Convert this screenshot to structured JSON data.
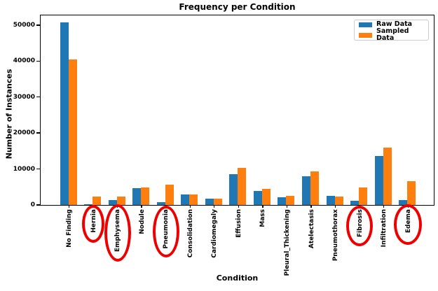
{
  "title": "Frequency per Condition",
  "xlabel": "Condition",
  "ylabel": "Number of Instances",
  "legend": {
    "position": "upper right",
    "items": [
      {
        "label": "Raw Data",
        "color": "#1f77b4"
      },
      {
        "label": "Sampled Data",
        "color": "#ff7f0e"
      }
    ]
  },
  "chart_data": {
    "type": "bar",
    "title": "Frequency per Condition",
    "xlabel": "Condition",
    "ylabel": "Number of Instances",
    "categories": [
      "No Finding",
      "Hernia",
      "Emphysema",
      "Nodule",
      "Pneumonia",
      "Consolidation",
      "Cardiomegaly",
      "Effusion",
      "Mass",
      "Pleural_Thickening",
      "Atelectasis",
      "Pneumothorax",
      "Fibrosis",
      "Infiltration",
      "Edema"
    ],
    "series": [
      {
        "name": "Raw Data",
        "color": "#1f77b4",
        "values": [
          50700,
          230,
          1300,
          4700,
          700,
          2900,
          1800,
          8500,
          3900,
          2050,
          8000,
          2450,
          1100,
          13700,
          1300
        ]
      },
      {
        "name": "Sampled Data",
        "color": "#ff7f0e",
        "values": [
          40400,
          2250,
          2300,
          4900,
          5700,
          3000,
          1800,
          10300,
          4400,
          2600,
          9300,
          2400,
          4800,
          16000,
          6600
        ]
      }
    ],
    "ylim": [
      0,
      52700
    ],
    "yticks": [
      0,
      10000,
      20000,
      30000,
      40000,
      50000
    ],
    "grid": false,
    "legend_position": "upper right",
    "annotations": {
      "circle_color": "#ee0000",
      "circled_categories": [
        "Hernia",
        "Emphysema",
        "Pneumonia",
        "Fibrosis",
        "Edema"
      ],
      "note": "hand-drawn red ellipses around these x-axis labels"
    }
  }
}
